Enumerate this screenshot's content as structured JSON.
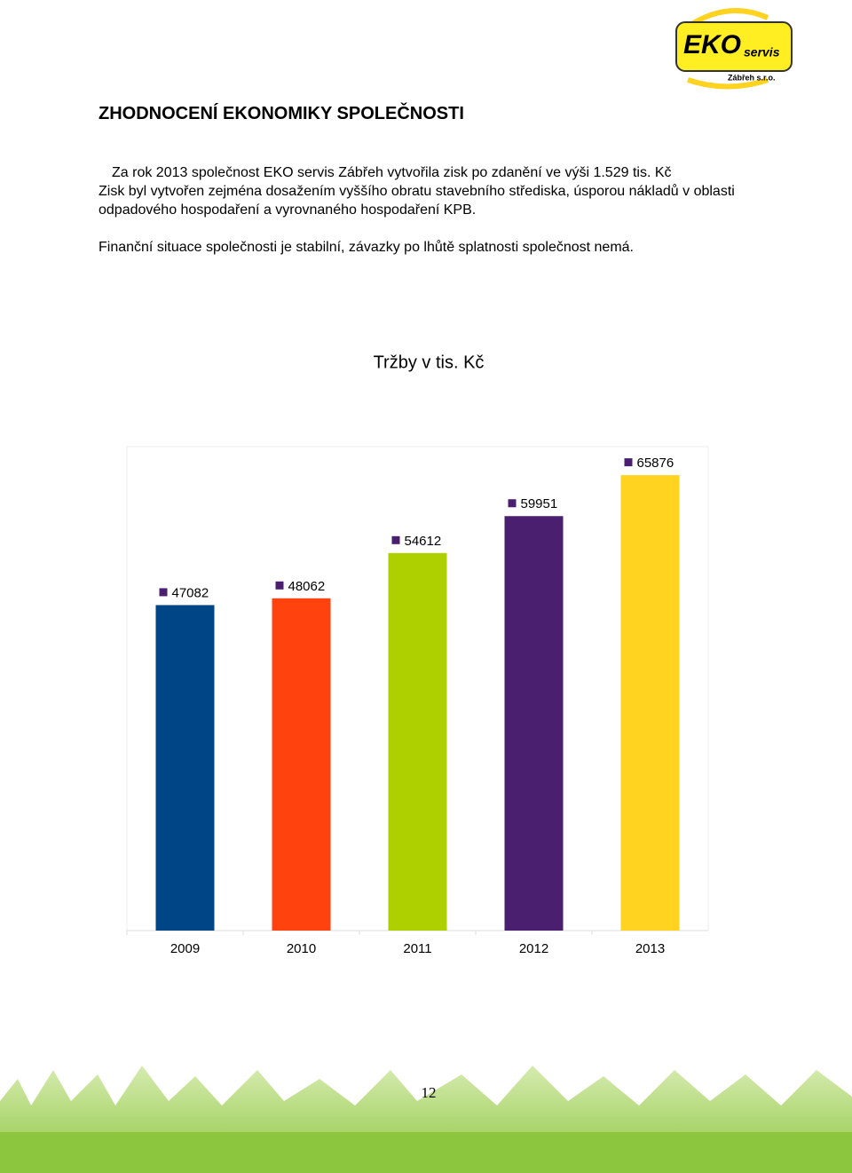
{
  "logo": {
    "brand": "EKO",
    "sub": "servis",
    "place": "Zábřeh s.r.o."
  },
  "heading": "ZHODNOCENÍ EKONOMIKY SPOLEČNOSTI",
  "paragraphs": [
    "Za rok 2013 společnost EKO servis Zábřeh vytvořila zisk po zdanění ve výši 1.529 tis. Kč",
    "Zisk byl vytvořen zejména dosažením vyššího obratu stavebního střediska, úsporou nákladů v oblasti odpadového hospodaření a vyrovnaného hospodaření KPB.",
    "Finanční situace společnosti je stabilní, závazky po lhůtě splatnosti společnost nemá."
  ],
  "chart_data": {
    "type": "bar",
    "title": "Tržby v tis. Kč",
    "categories": [
      "2009",
      "2010",
      "2011",
      "2012",
      "2013"
    ],
    "values": [
      47082,
      48062,
      54612,
      59951,
      65876
    ],
    "colors": [
      "#004586",
      "#ff420e",
      "#aecf00",
      "#4b1f6f",
      "#ffd320"
    ],
    "label_key_color": "#4b1f6f",
    "ylim": [
      0,
      70000
    ]
  },
  "page_number": "12"
}
